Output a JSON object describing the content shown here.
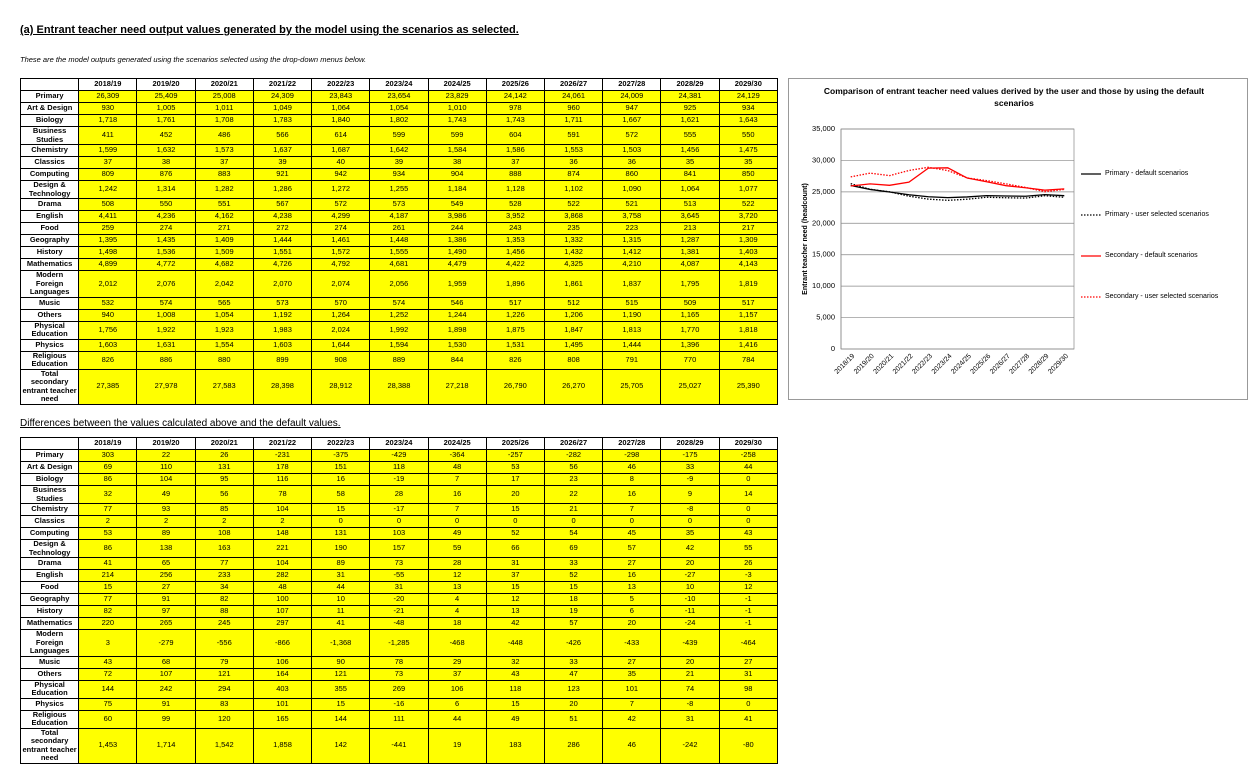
{
  "heading": "(a) Entrant teacher need output values generated by the model using the scenarios as selected.",
  "note": "These are the model outputs generated using the scenarios selected using the drop-down menus below.",
  "table1": {
    "columns": [
      "2018/19",
      "2019/20",
      "2020/21",
      "2021/22",
      "2022/23",
      "2023/24",
      "2024/25",
      "2025/26",
      "2026/27",
      "2027/28",
      "2028/29",
      "2029/30"
    ],
    "rows": [
      {
        "label": "Primary",
        "cells": [
          "26,309",
          "25,409",
          "25,008",
          "24,309",
          "23,843",
          "23,654",
          "23,829",
          "24,142",
          "24,061",
          "24,009",
          "24,381",
          "24,129"
        ]
      },
      {
        "label": "Art & Design",
        "cells": [
          "930",
          "1,005",
          "1,011",
          "1,049",
          "1,064",
          "1,054",
          "1,010",
          "978",
          "960",
          "947",
          "925",
          "934"
        ]
      },
      {
        "label": "Biology",
        "cells": [
          "1,718",
          "1,761",
          "1,708",
          "1,783",
          "1,840",
          "1,802",
          "1,743",
          "1,743",
          "1,711",
          "1,667",
          "1,621",
          "1,643"
        ]
      },
      {
        "label": "Business Studies",
        "cells": [
          "411",
          "452",
          "486",
          "566",
          "614",
          "599",
          "599",
          "604",
          "591",
          "572",
          "555",
          "550"
        ]
      },
      {
        "label": "Chemistry",
        "cells": [
          "1,599",
          "1,632",
          "1,573",
          "1,637",
          "1,687",
          "1,642",
          "1,584",
          "1,586",
          "1,553",
          "1,503",
          "1,456",
          "1,475"
        ]
      },
      {
        "label": "Classics",
        "cells": [
          "37",
          "38",
          "37",
          "39",
          "40",
          "39",
          "38",
          "37",
          "36",
          "36",
          "35",
          "35"
        ]
      },
      {
        "label": "Computing",
        "cells": [
          "809",
          "876",
          "883",
          "921",
          "942",
          "934",
          "904",
          "888",
          "874",
          "860",
          "841",
          "850"
        ]
      },
      {
        "label": "Design & Technology",
        "cells": [
          "1,242",
          "1,314",
          "1,282",
          "1,286",
          "1,272",
          "1,255",
          "1,184",
          "1,128",
          "1,102",
          "1,090",
          "1,064",
          "1,077"
        ]
      },
      {
        "label": "Drama",
        "cells": [
          "508",
          "550",
          "551",
          "567",
          "572",
          "573",
          "549",
          "528",
          "522",
          "521",
          "513",
          "522"
        ]
      },
      {
        "label": "English",
        "cells": [
          "4,411",
          "4,236",
          "4,162",
          "4,238",
          "4,299",
          "4,187",
          "3,986",
          "3,952",
          "3,868",
          "3,758",
          "3,645",
          "3,720"
        ]
      },
      {
        "label": "Food",
        "cells": [
          "259",
          "274",
          "271",
          "272",
          "274",
          "261",
          "244",
          "243",
          "235",
          "223",
          "213",
          "217"
        ]
      },
      {
        "label": "Geography",
        "cells": [
          "1,395",
          "1,435",
          "1,409",
          "1,444",
          "1,461",
          "1,448",
          "1,386",
          "1,353",
          "1,332",
          "1,315",
          "1,287",
          "1,309"
        ]
      },
      {
        "label": "History",
        "cells": [
          "1,498",
          "1,536",
          "1,509",
          "1,551",
          "1,572",
          "1,555",
          "1,490",
          "1,456",
          "1,432",
          "1,412",
          "1,381",
          "1,403"
        ]
      },
      {
        "label": "Mathematics",
        "cells": [
          "4,899",
          "4,772",
          "4,682",
          "4,726",
          "4,792",
          "4,681",
          "4,479",
          "4,422",
          "4,325",
          "4,210",
          "4,087",
          "4,143"
        ]
      },
      {
        "label": "Modern Foreign Languages",
        "cells": [
          "2,012",
          "2,076",
          "2,042",
          "2,070",
          "2,074",
          "2,056",
          "1,959",
          "1,896",
          "1,861",
          "1,837",
          "1,795",
          "1,819"
        ]
      },
      {
        "label": "Music",
        "cells": [
          "532",
          "574",
          "565",
          "573",
          "570",
          "574",
          "546",
          "517",
          "512",
          "515",
          "509",
          "517"
        ]
      },
      {
        "label": "Others",
        "cells": [
          "940",
          "1,008",
          "1,054",
          "1,192",
          "1,264",
          "1,252",
          "1,244",
          "1,226",
          "1,206",
          "1,190",
          "1,165",
          "1,157"
        ]
      },
      {
        "label": "Physical Education",
        "cells": [
          "1,756",
          "1,922",
          "1,923",
          "1,983",
          "2,024",
          "1,992",
          "1,898",
          "1,875",
          "1,847",
          "1,813",
          "1,770",
          "1,818"
        ]
      },
      {
        "label": "Physics",
        "cells": [
          "1,603",
          "1,631",
          "1,554",
          "1,603",
          "1,644",
          "1,594",
          "1,530",
          "1,531",
          "1,495",
          "1,444",
          "1,396",
          "1,416"
        ]
      },
      {
        "label": "Religious Education",
        "cells": [
          "826",
          "886",
          "880",
          "899",
          "908",
          "889",
          "844",
          "826",
          "808",
          "791",
          "770",
          "784"
        ]
      },
      {
        "label": "Total secondary entrant teacher need",
        "cells": [
          "27,385",
          "27,978",
          "27,583",
          "28,398",
          "28,912",
          "28,388",
          "27,218",
          "26,790",
          "26,270",
          "25,705",
          "25,027",
          "25,390"
        ]
      }
    ]
  },
  "heading2": "Differences between the values calculated above and the default values.",
  "table2": {
    "columns": [
      "2018/19",
      "2019/20",
      "2020/21",
      "2021/22",
      "2022/23",
      "2023/24",
      "2024/25",
      "2025/26",
      "2026/27",
      "2027/28",
      "2028/29",
      "2029/30"
    ],
    "rows": [
      {
        "label": "Primary",
        "cells": [
          "303",
          "22",
          "26",
          "-231",
          "-375",
          "-429",
          "-364",
          "-257",
          "-282",
          "-298",
          "-175",
          "-258"
        ]
      },
      {
        "label": "Art & Design",
        "cells": [
          "69",
          "110",
          "131",
          "178",
          "151",
          "118",
          "48",
          "53",
          "56",
          "46",
          "33",
          "44"
        ]
      },
      {
        "label": "Biology",
        "cells": [
          "86",
          "104",
          "95",
          "116",
          "16",
          "-19",
          "7",
          "17",
          "23",
          "8",
          "-9",
          "0"
        ]
      },
      {
        "label": "Business Studies",
        "cells": [
          "32",
          "49",
          "56",
          "78",
          "58",
          "28",
          "16",
          "20",
          "22",
          "16",
          "9",
          "14"
        ]
      },
      {
        "label": "Chemistry",
        "cells": [
          "77",
          "93",
          "85",
          "104",
          "15",
          "-17",
          "7",
          "15",
          "21",
          "7",
          "-8",
          "0"
        ]
      },
      {
        "label": "Classics",
        "cells": [
          "2",
          "2",
          "2",
          "2",
          "0",
          "0",
          "0",
          "0",
          "0",
          "0",
          "0",
          "0"
        ]
      },
      {
        "label": "Computing",
        "cells": [
          "53",
          "89",
          "108",
          "148",
          "131",
          "103",
          "49",
          "52",
          "54",
          "45",
          "35",
          "43"
        ]
      },
      {
        "label": "Design & Technology",
        "cells": [
          "86",
          "138",
          "163",
          "221",
          "190",
          "157",
          "59",
          "66",
          "69",
          "57",
          "42",
          "55"
        ]
      },
      {
        "label": "Drama",
        "cells": [
          "41",
          "65",
          "77",
          "104",
          "89",
          "73",
          "28",
          "31",
          "33",
          "27",
          "20",
          "26"
        ]
      },
      {
        "label": "English",
        "cells": [
          "214",
          "256",
          "233",
          "282",
          "31",
          "-55",
          "12",
          "37",
          "52",
          "16",
          "-27",
          "-3"
        ]
      },
      {
        "label": "Food",
        "cells": [
          "15",
          "27",
          "34",
          "48",
          "44",
          "31",
          "13",
          "15",
          "15",
          "13",
          "10",
          "12"
        ]
      },
      {
        "label": "Geography",
        "cells": [
          "77",
          "91",
          "82",
          "100",
          "10",
          "-20",
          "4",
          "12",
          "18",
          "5",
          "-10",
          "-1"
        ]
      },
      {
        "label": "History",
        "cells": [
          "82",
          "97",
          "88",
          "107",
          "11",
          "-21",
          "4",
          "13",
          "19",
          "6",
          "-11",
          "-1"
        ]
      },
      {
        "label": "Mathematics",
        "cells": [
          "220",
          "265",
          "245",
          "297",
          "41",
          "-48",
          "18",
          "42",
          "57",
          "20",
          "-24",
          "-1"
        ]
      },
      {
        "label": "Modern Foreign Languages",
        "cells": [
          "3",
          "-279",
          "-556",
          "-866",
          "-1,368",
          "-1,285",
          "-468",
          "-448",
          "-426",
          "-433",
          "-439",
          "-464"
        ]
      },
      {
        "label": "Music",
        "cells": [
          "43",
          "68",
          "79",
          "106",
          "90",
          "78",
          "29",
          "32",
          "33",
          "27",
          "20",
          "27"
        ]
      },
      {
        "label": "Others",
        "cells": [
          "72",
          "107",
          "121",
          "164",
          "121",
          "73",
          "37",
          "43",
          "47",
          "35",
          "21",
          "31"
        ]
      },
      {
        "label": "Physical Education",
        "cells": [
          "144",
          "242",
          "294",
          "403",
          "355",
          "269",
          "106",
          "118",
          "123",
          "101",
          "74",
          "98"
        ]
      },
      {
        "label": "Physics",
        "cells": [
          "75",
          "91",
          "83",
          "101",
          "15",
          "-16",
          "6",
          "15",
          "20",
          "7",
          "-8",
          "0"
        ]
      },
      {
        "label": "Religious Education",
        "cells": [
          "60",
          "99",
          "120",
          "165",
          "144",
          "111",
          "44",
          "49",
          "51",
          "42",
          "31",
          "41"
        ]
      },
      {
        "label": "Total secondary entrant teacher need",
        "cells": [
          "1,453",
          "1,714",
          "1,542",
          "1,858",
          "142",
          "-441",
          "19",
          "183",
          "286",
          "46",
          "-242",
          "-80"
        ]
      }
    ]
  },
  "chart_data": {
    "type": "line",
    "title": "Comparison of entrant teacher need values derived by the user and those by using the default scenarios",
    "y_label": "Entrant teacher need (headcount)",
    "categories": [
      "2018/19",
      "2019/20",
      "2020/21",
      "2021/22",
      "2022/23",
      "2023/24",
      "2024/25",
      "2025/26",
      "2026/27",
      "2027/28",
      "2028/29",
      "2029/30"
    ],
    "ylim": [
      0,
      35000
    ],
    "yticks": [
      0,
      {
        "value": 5000,
        "label": "5,000"
      },
      {
        "value": 10000,
        "label": "10,000"
      },
      {
        "value": 15000,
        "label": "15,000"
      },
      {
        "value": 20000,
        "label": "20,000"
      },
      {
        "value": 25000,
        "label": "25,000"
      },
      {
        "value": 30000,
        "label": "30,000"
      },
      {
        "value": 35000,
        "label": "35,000"
      }
    ],
    "grid": true,
    "series": [
      {
        "name": "Primary - default scenarios",
        "color": "#000000",
        "line_style": "solid",
        "values": [
          26006,
          25387,
          24982,
          24540,
          24218,
          24083,
          24193,
          24399,
          24343,
          24307,
          24556,
          24387
        ]
      },
      {
        "name": "Primary - user selected scenarios",
        "color": "#000000",
        "line_style": "dotted",
        "values": [
          26309,
          25409,
          25008,
          24309,
          23843,
          23654,
          23829,
          24142,
          24061,
          24009,
          24381,
          24129
        ]
      },
      {
        "name": "Secondary - default scenarios",
        "color": "#ff0000",
        "line_style": "solid",
        "values": [
          25932,
          26264,
          26041,
          26540,
          28770,
          28829,
          27199,
          26607,
          25984,
          25659,
          25269,
          25470
        ]
      },
      {
        "name": "Secondary - user selected scenarios",
        "color": "#ff0000",
        "line_style": "dotted",
        "values": [
          27385,
          27978,
          27583,
          28398,
          28912,
          28388,
          27218,
          26790,
          26270,
          25705,
          25027,
          25390
        ]
      }
    ]
  }
}
